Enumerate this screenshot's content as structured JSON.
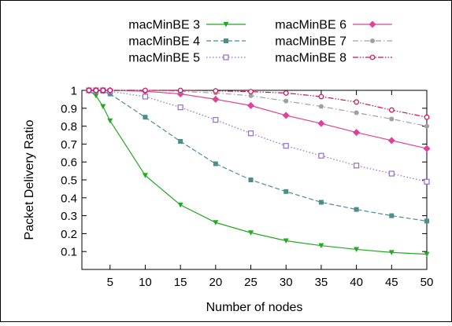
{
  "chart_data": {
    "type": "line",
    "title": "",
    "xlabel": "Number of nodes",
    "ylabel": "Packet Delivery Ratio",
    "xlim": [
      1,
      50
    ],
    "ylim": [
      0.0,
      1.0
    ],
    "x_ticks": [
      5,
      10,
      15,
      20,
      25,
      30,
      35,
      40,
      45,
      50
    ],
    "y_ticks": [
      0.1,
      0.2,
      0.3,
      0.4,
      0.5,
      0.6,
      0.7,
      0.8,
      0.9,
      1
    ],
    "x_tick_labels": [
      "5",
      "10",
      "15",
      "20",
      "25",
      "30",
      "35",
      "40",
      "45",
      "50"
    ],
    "y_tick_labels": [
      "0.1",
      "0.2",
      "0.3",
      "0.4",
      "0.5",
      "0.6",
      "0.7",
      "0.8",
      "0.9",
      "1"
    ],
    "grid": false,
    "legend_position": "top",
    "x": [
      2,
      3,
      4,
      5,
      10,
      15,
      20,
      25,
      30,
      35,
      40,
      45,
      50
    ],
    "series": [
      {
        "name": "macMinBE 3",
        "color": "#22aa22",
        "marker": "triangle-down",
        "dash": "solid",
        "values": [
          1.0,
          0.97,
          0.91,
          0.83,
          0.525,
          0.36,
          0.262,
          0.205,
          0.16,
          0.133,
          0.112,
          0.095,
          0.085
        ]
      },
      {
        "name": "macMinBE 4",
        "color": "#4a8f8c",
        "marker": "square",
        "dash": "dashed",
        "values": [
          1.0,
          1.0,
          0.995,
          0.98,
          0.85,
          0.715,
          0.59,
          0.5,
          0.435,
          0.375,
          0.335,
          0.3,
          0.27
        ]
      },
      {
        "name": "macMinBE 5",
        "color": "#8e6fd0",
        "marker": "square-open",
        "dash": "dotted",
        "values": [
          1.0,
          1.0,
          1.0,
          0.995,
          0.965,
          0.905,
          0.835,
          0.76,
          0.69,
          0.635,
          0.58,
          0.535,
          0.49
        ]
      },
      {
        "name": "macMinBE 6",
        "color": "#e0409a",
        "marker": "diamond",
        "dash": "solid",
        "values": [
          1.0,
          1.0,
          1.0,
          1.0,
          0.995,
          0.98,
          0.95,
          0.915,
          0.86,
          0.815,
          0.765,
          0.72,
          0.675
        ]
      },
      {
        "name": "macMinBE 7",
        "color": "#a0a0a0",
        "marker": "circle",
        "dash": "dashdot",
        "values": [
          1.0,
          1.0,
          1.0,
          1.0,
          1.0,
          0.995,
          0.985,
          0.97,
          0.94,
          0.91,
          0.875,
          0.84,
          0.8
        ]
      },
      {
        "name": "macMinBE 8",
        "color": "#cc1155",
        "marker": "circle-open",
        "dash": "dashdotdot",
        "values": [
          1.0,
          1.0,
          1.0,
          1.0,
          1.0,
          1.0,
          0.997,
          0.993,
          0.985,
          0.965,
          0.935,
          0.89,
          0.85
        ]
      }
    ]
  }
}
